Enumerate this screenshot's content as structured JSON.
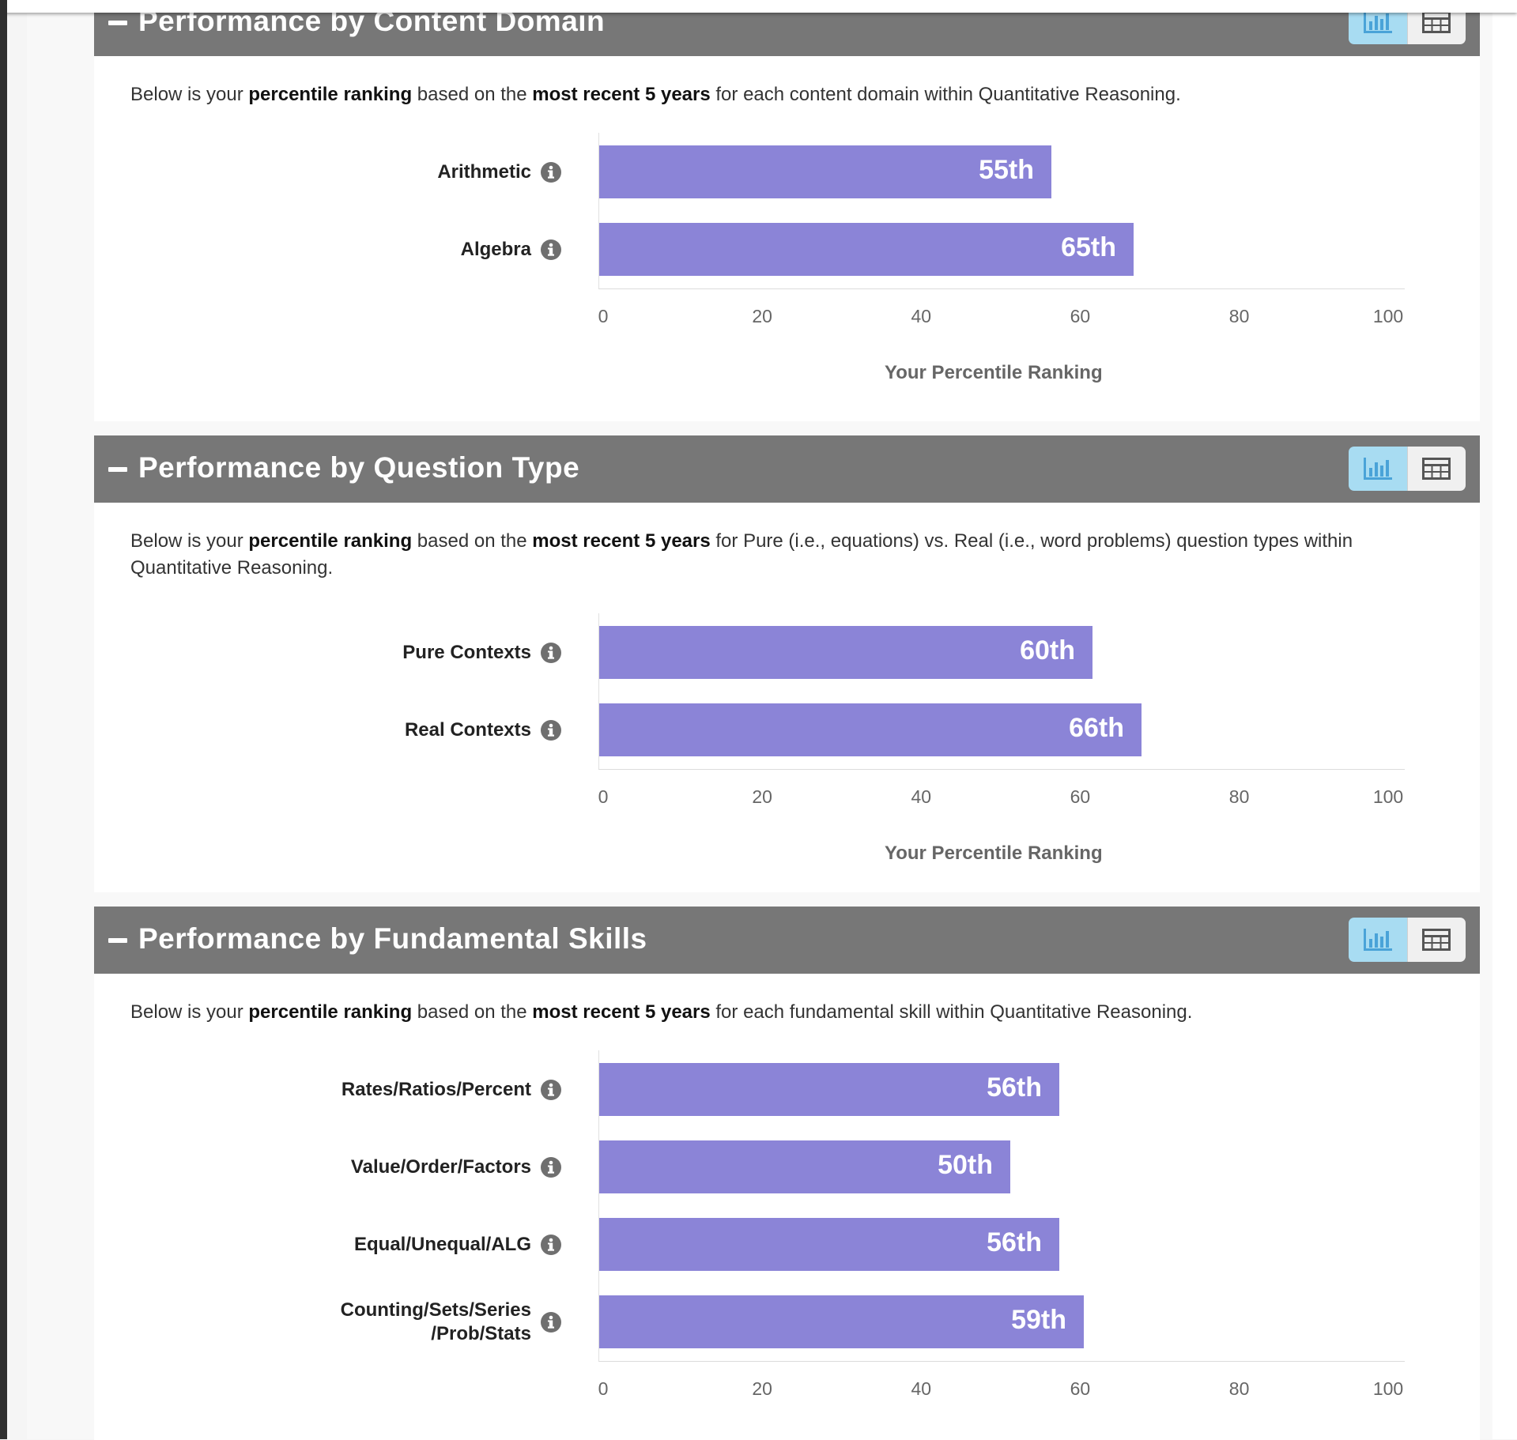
{
  "axis": {
    "ticks": [
      "0",
      "20",
      "40",
      "60",
      "80",
      "100"
    ],
    "title": "Your Percentile Ranking",
    "range": [
      0,
      100
    ]
  },
  "common": {
    "desc_prefix": "Below is your ",
    "desc_bold1": "percentile ranking",
    "desc_mid": " based on the ",
    "desc_bold2": "most recent 5 years"
  },
  "sections": {
    "content_domain": {
      "title": "Performance by Content Domain",
      "desc_suffix": " for each content domain within Quantitative Reasoning."
    },
    "question_type": {
      "title": "Performance by Question Type",
      "desc_suffix": " for Pure (i.e., equations) vs. Real (i.e., word problems) question types within Quantitative Reasoning."
    },
    "fundamental_skills": {
      "title": "Performance by Fundamental Skills",
      "desc_suffix": " for each fundamental skill within Quantitative Reasoning."
    }
  },
  "chart_data": [
    {
      "type": "bar",
      "orientation": "horizontal",
      "title": "Performance by Content Domain",
      "categories": [
        "Arithmetic",
        "Algebra"
      ],
      "values": [
        55,
        65
      ],
      "labels": [
        "55th",
        "65th"
      ],
      "xlabel": "Your Percentile Ranking",
      "xlim": [
        0,
        100
      ]
    },
    {
      "type": "bar",
      "orientation": "horizontal",
      "title": "Performance by Question Type",
      "categories": [
        "Pure Contexts",
        "Real Contexts"
      ],
      "values": [
        60,
        66
      ],
      "labels": [
        "60th",
        "66th"
      ],
      "xlabel": "Your Percentile Ranking",
      "xlim": [
        0,
        100
      ]
    },
    {
      "type": "bar",
      "orientation": "horizontal",
      "title": "Performance by Fundamental Skills",
      "categories": [
        "Rates/Ratios/Percent",
        "Value/Order/Factors",
        "Equal/Unequal/ALG",
        "Counting/Sets/Series/Prob/Stats"
      ],
      "category_lines": [
        [
          "Rates/Ratios/Percent"
        ],
        [
          "Value/Order/Factors"
        ],
        [
          "Equal/Unequal/ALG"
        ],
        [
          "Counting/Sets/Series",
          "/Prob/Stats"
        ]
      ],
      "values": [
        56,
        50,
        56,
        59
      ],
      "labels": [
        "56th",
        "50th",
        "56th",
        "59th"
      ],
      "xlabel": "Your Percentile Ranking",
      "xlim": [
        0,
        100
      ]
    }
  ],
  "colors": {
    "bar": "#8b84d7",
    "header": "#777777",
    "chart_toggle_active": "#a8dcf2"
  }
}
